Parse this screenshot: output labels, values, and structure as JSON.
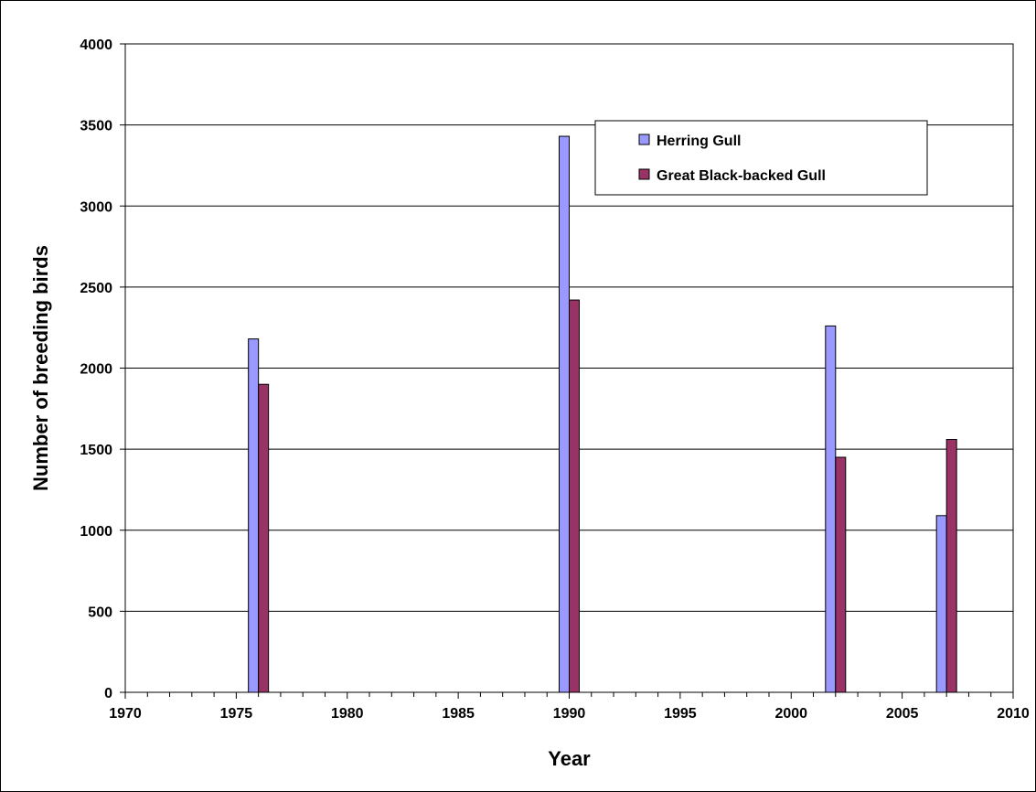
{
  "chart_data": {
    "type": "bar",
    "title": "",
    "xlabel": "Year",
    "ylabel": "Number of breeding birds",
    "xlim": [
      1970,
      2010
    ],
    "ylim": [
      0,
      4000
    ],
    "x_ticks": [
      1970,
      1975,
      1980,
      1985,
      1990,
      1995,
      2000,
      2005,
      2010
    ],
    "y_ticks": [
      0,
      500,
      1000,
      1500,
      2000,
      2500,
      3000,
      3500,
      4000
    ],
    "grid": "horizontal",
    "legend_position": "top-right",
    "series": [
      {
        "name": "Herring Gull",
        "color": "#9999ff",
        "points": [
          {
            "year": 1976,
            "value": 2180
          },
          {
            "year": 1990,
            "value": 3430
          },
          {
            "year": 2002,
            "value": 2260
          },
          {
            "year": 2007,
            "value": 1090
          }
        ]
      },
      {
        "name": "Great Black-backed Gull",
        "color": "#993366",
        "points": [
          {
            "year": 1976,
            "value": 1900
          },
          {
            "year": 1990,
            "value": 2420
          },
          {
            "year": 2002,
            "value": 1450
          },
          {
            "year": 2007,
            "value": 1560
          }
        ]
      }
    ]
  }
}
